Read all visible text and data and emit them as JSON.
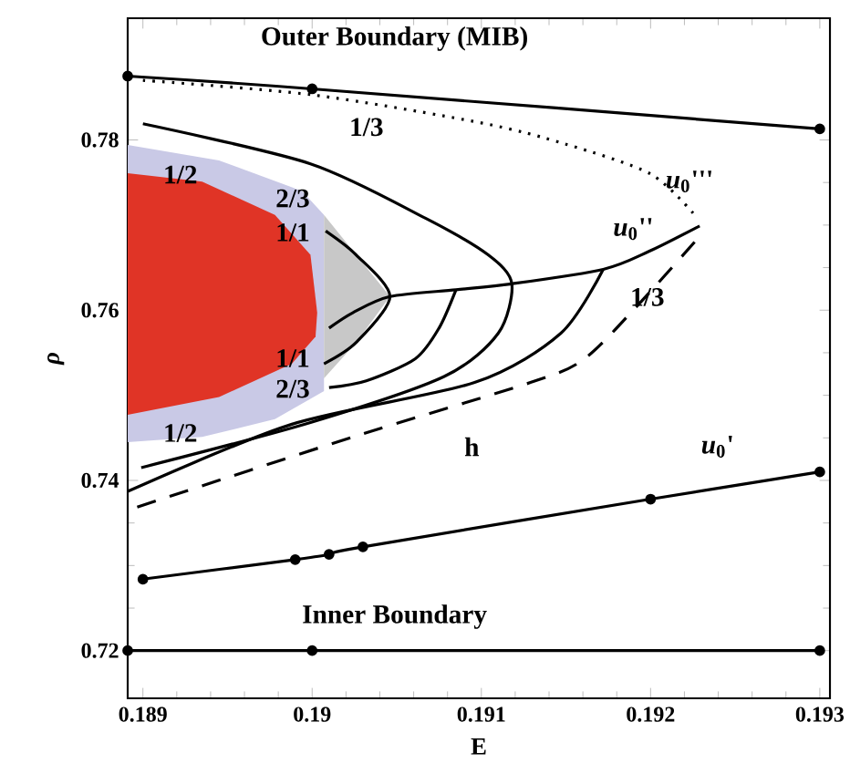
{
  "chart_data": {
    "type": "line",
    "xlabel": "E",
    "ylabel": "ρ",
    "xlim": [
      0.18891,
      0.19306
    ],
    "ylim": [
      0.7144,
      0.7943
    ],
    "xticks": [
      0.189,
      0.19,
      0.191,
      0.192,
      0.193
    ],
    "yticks": [
      0.72,
      0.74,
      0.76,
      0.78
    ],
    "series": [
      {
        "type": "area",
        "color": "#c9c9e6",
        "x": [
          0.18891,
          0.18945,
          0.18994,
          0.19007,
          0.19007,
          0.18978,
          0.18935,
          0.18891
        ],
        "values": [
          0.7794,
          0.7776,
          0.774,
          0.7712,
          0.7505,
          0.7472,
          0.7451,
          0.7445
        ]
      },
      {
        "type": "area",
        "color": "#e03426",
        "x": [
          0.18891,
          0.18935,
          0.18978,
          0.18999,
          0.19003,
          0.19002,
          0.18988,
          0.18945,
          0.18891
        ],
        "values": [
          0.7761,
          0.7751,
          0.7712,
          0.7665,
          0.7597,
          0.7569,
          0.7537,
          0.7498,
          0.7477
        ]
      },
      {
        "type": "area",
        "color": "#c8c8c8",
        "x": [
          0.19007,
          0.19026,
          0.19046,
          0.19026,
          0.19007
        ],
        "values": [
          0.7712,
          0.7665,
          0.7616,
          0.7562,
          0.752
        ]
      },
      {
        "color": "#000000",
        "marker": "circle",
        "x": [
          0.18891,
          0.19,
          0.193
        ],
        "values": [
          0.7875,
          0.786,
          0.7813
        ]
      },
      {
        "color": "#000000",
        "marker": "circle",
        "x": [
          0.18891,
          0.19,
          0.193
        ],
        "values": [
          0.72,
          0.72,
          0.72
        ]
      },
      {
        "color": "#000000",
        "marker": "circle",
        "x": [
          0.189,
          0.1899,
          0.1901,
          0.1903,
          0.192,
          0.193
        ],
        "values": [
          0.7284,
          0.7307,
          0.7313,
          0.7322,
          0.7378,
          0.741
        ]
      },
      {
        "color": "#000000",
        "line_style": "dotted",
        "x": [
          0.189,
          0.19,
          0.191,
          0.1915,
          0.192,
          0.19226
        ],
        "values": [
          0.787,
          0.7853,
          0.782,
          0.7795,
          0.776,
          0.7712
        ]
      },
      {
        "color": "#000000",
        "x": [
          0.1901,
          0.19024,
          0.19046,
          0.19085,
          0.19118,
          0.19172,
          0.19199,
          0.19229
        ],
        "values": [
          0.7579,
          0.7597,
          0.7616,
          0.7624,
          0.7631,
          0.7648,
          0.7669,
          0.7699
        ]
      },
      {
        "color": "#000000",
        "x": [
          0.19008,
          0.19026,
          0.19046,
          0.19026,
          0.19007
        ],
        "values": [
          0.7693,
          0.7665,
          0.7616,
          0.7562,
          0.7537
        ]
      },
      {
        "color": "#000000",
        "x": [
          0.19085,
          0.19075,
          0.19061,
          0.19032,
          0.1901
        ],
        "values": [
          0.7624,
          0.7579,
          0.7543,
          0.7517,
          0.7509
        ]
      },
      {
        "color": "#000000",
        "x": [
          0.189,
          0.18999,
          0.19067,
          0.19104,
          0.19118,
          0.1911,
          0.19078,
          0.18999,
          0.18899
        ],
        "values": [
          0.7819,
          0.7772,
          0.7708,
          0.7665,
          0.7631,
          0.7573,
          0.7522,
          0.7468,
          0.7415
        ]
      },
      {
        "color": "#000000",
        "x": [
          0.19172,
          0.19147,
          0.19096,
          0.18988,
          0.18891
        ],
        "values": [
          0.7648,
          0.7573,
          0.7515,
          0.7466,
          0.7387
        ]
      },
      {
        "color": "#000000",
        "line_style": "dashed",
        "x": [
          0.19226,
          0.19193,
          0.19161,
          0.19129,
          0.19024,
          0.18891
        ],
        "values": [
          0.768,
          0.7607,
          0.7543,
          0.7515,
          0.7451,
          0.7365
        ]
      }
    ],
    "annotations": [
      "Outer Boundary (MIB)",
      "Inner Boundary",
      "1/3",
      "1/2",
      "2/3",
      "1/1",
      "1/1",
      "2/3",
      "1/2",
      "h",
      "1/3",
      "*u*$_{0}$'''",
      "*u*$_{0}$''",
      "*u*$_{0}$'"
    ]
  }
}
